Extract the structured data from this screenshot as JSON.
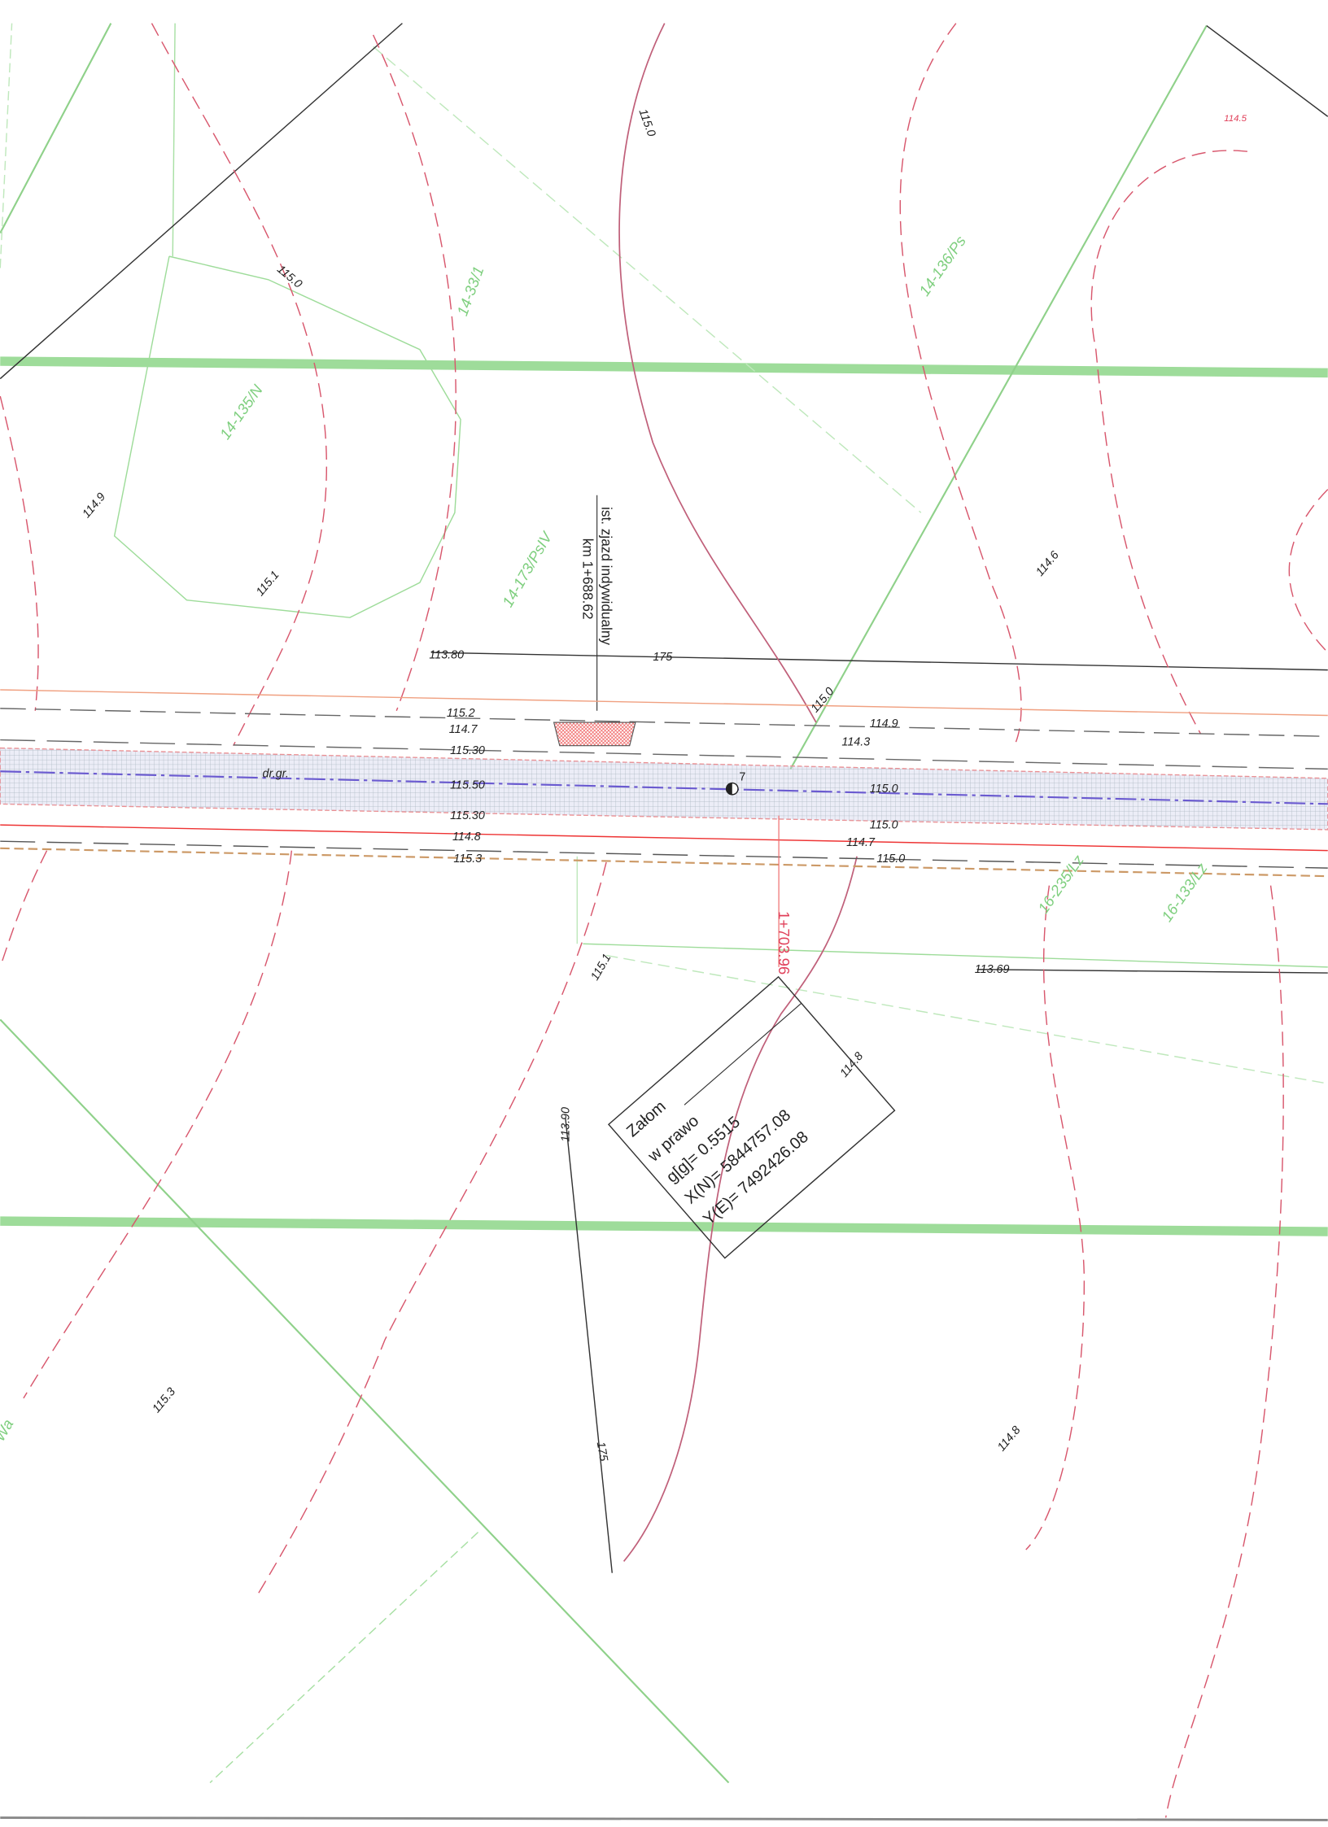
{
  "labels": [
    "115.0",
    "114.5",
    "115.0",
    "14-33/1",
    "14-136/Ps",
    "14-135/N",
    "114.9",
    "ist. zjazd indywidualny",
    "km 1+688.62",
    "14-173/PsIV",
    "115.1",
    "114.6",
    "113.80",
    "175",
    "115.0",
    "115.2",
    "114.7",
    "115.30",
    "114.9",
    "114.3",
    "dr.gr.",
    "115.50",
    "7",
    "115.0",
    "115.30",
    "115.0",
    "114.8",
    "114.7",
    "115.3",
    "115.0",
    "16-235/Lz",
    "16-133/Lz",
    "1+703.96",
    "115.1",
    "113.69",
    "114.8",
    "113.90",
    "115.3",
    "114.8",
    "175",
    "Wa"
  ],
  "box": {
    "title": "Załom",
    "lines": [
      "w prawo",
      "g[g]= 0.5515",
      "X(N)= 5844757.08",
      "Y(E)= 7492426.08"
    ]
  }
}
